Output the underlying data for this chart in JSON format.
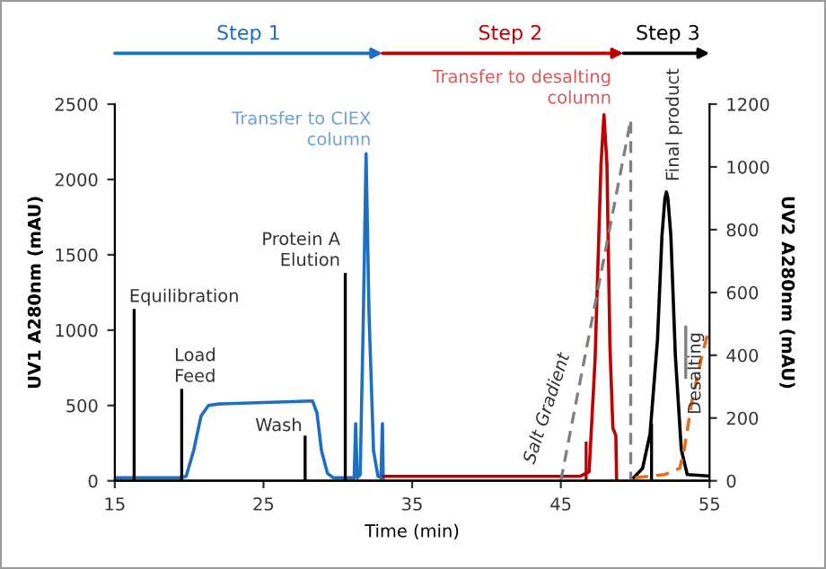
{
  "chart_data": {
    "type": "line",
    "xlabel": "Time (min)",
    "ylabel": "UV1 A280nm (mAU)",
    "y2label": "UV2 A280nm (mAU)",
    "xlim": [
      15,
      55
    ],
    "xticks": [
      15,
      25,
      35,
      45,
      55
    ],
    "ylim": [
      0,
      2500
    ],
    "yticks": [
      0,
      500,
      1000,
      1500,
      2000,
      2500
    ],
    "y2lim": [
      0,
      1200
    ],
    "y2ticks": [
      0,
      200,
      400,
      600,
      800,
      1000,
      1200
    ],
    "grid": false,
    "series": [
      {
        "color": "#1f6fc0",
        "x": [
          15,
          19.3,
          19.8,
          20.3,
          20.8,
          21.3,
          22,
          25,
          28.3,
          28.6,
          28.9,
          29.3,
          29.7,
          31.1,
          31.2,
          31.3,
          31.5,
          31.7,
          31.9,
          32.1,
          32.4,
          32.7,
          32.9,
          33.0,
          33.05
        ],
        "values": [
          20,
          20,
          30,
          200,
          430,
          500,
          510,
          520,
          530,
          450,
          200,
          50,
          20,
          20,
          380,
          20,
          40,
          1000,
          2170,
          1100,
          200,
          30,
          20,
          380,
          20
        ]
      },
      {
        "color": "#c00000",
        "x": [
          33.05,
          46.3,
          46.9,
          47.3,
          47.7,
          47.9,
          48.1,
          48.3,
          48.5,
          48.7,
          48.75
        ],
        "values": [
          30,
          30,
          60,
          800,
          2100,
          2430,
          2100,
          900,
          350,
          300,
          0
        ]
      },
      {
        "color": "#c00000",
        "x": [
          46.7,
          46.7
        ],
        "values": [
          0,
          250
        ]
      },
      {
        "color": "#000000",
        "x": [
          16.3,
          16.3
        ],
        "values": [
          0,
          1130
        ]
      },
      {
        "color": "#000000",
        "x": [
          19.5,
          19.5
        ],
        "values": [
          0,
          600
        ]
      },
      {
        "color": "#000000",
        "x": [
          27.8,
          27.8
        ],
        "values": [
          0,
          290
        ]
      },
      {
        "color": "#000000",
        "x": [
          30.5,
          30.5
        ],
        "values": [
          0,
          1370
        ]
      },
      {
        "color": "#000000",
        "axis": "y2",
        "x": [
          49.9,
          50.5,
          51,
          51.5,
          51.8,
          52.0,
          52.1,
          52.2,
          52.4,
          52.7,
          53.1,
          53.5,
          55
        ],
        "values": [
          10,
          40,
          150,
          450,
          780,
          900,
          920,
          900,
          780,
          400,
          100,
          20,
          15
        ]
      },
      {
        "color": "#000000",
        "axis": "y2",
        "x": [
          51.1,
          51.1
        ],
        "values": [
          0,
          177
        ]
      },
      {
        "color": "#808080",
        "axis": "y2",
        "line_style": "dashed",
        "x": [
          45,
          49.7,
          49.7
        ],
        "values": [
          0,
          1150,
          0
        ]
      },
      {
        "color": "#e07020",
        "axis": "y2",
        "line_style": "dashed",
        "x": [
          50,
          52,
          53,
          53.3,
          53.8,
          54.5,
          55
        ],
        "values": [
          10,
          20,
          40,
          100,
          250,
          400,
          490
        ]
      },
      {
        "color": "#808080",
        "axis": "y2",
        "x": [
          53.4,
          53.4
        ],
        "values": [
          330,
          490
        ]
      }
    ],
    "annotations": [
      {
        "text": "Equilibration",
        "x": 16.3,
        "y": 1130
      },
      {
        "text": "Load\nFeed",
        "x": 19.5,
        "y": 600
      },
      {
        "text": "Wash",
        "x": 27.8,
        "y": 290
      },
      {
        "text": "Protein A\nElution",
        "x": 30.5,
        "y": 1370
      },
      {
        "text": "Transfer to CIEX\ncolumn",
        "x": 31.9,
        "y": 2170
      },
      {
        "text": "Transfer to desalting\ncolumn",
        "x": 47.9,
        "y": 2430
      },
      {
        "text": "Salt Gradient",
        "x": 45.6,
        "y": 480
      },
      "Final product",
      {
        "text": "Desalting",
        "x": 53.4,
        "y": 490
      },
      "Step 1",
      "Step 2",
      "Step 3"
    ]
  }
}
